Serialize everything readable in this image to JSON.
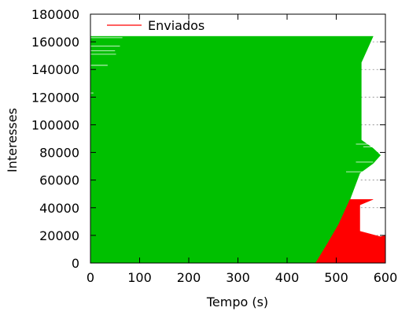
{
  "chart_data": {
    "type": "area",
    "xlabel": "Tempo (s)",
    "ylabel": "Interesses",
    "xlim": [
      0,
      600
    ],
    "ylim": [
      0,
      180000
    ],
    "x_ticks": [
      "0",
      "100",
      "200",
      "300",
      "400",
      "500",
      "600"
    ],
    "y_ticks": [
      "0",
      "20000",
      "40000",
      "60000",
      "80000",
      "100000",
      "120000",
      "140000",
      "160000",
      "180000"
    ],
    "x_tick_values": [
      0,
      100,
      200,
      300,
      400,
      500,
      600
    ],
    "y_tick_values": [
      0,
      20000,
      40000,
      60000,
      80000,
      100000,
      120000,
      140000,
      160000,
      180000
    ],
    "grid": "dotted-right-edge",
    "legend_position": "top-left",
    "series": [
      {
        "name": "Enviados",
        "color": "#ff0000",
        "role": "red-band",
        "boundary": [
          {
            "x": 458,
            "y": 0
          },
          {
            "x": 600,
            "y": 0
          },
          {
            "x": 600,
            "y": 20000
          },
          {
            "x": 590,
            "y": 19000
          },
          {
            "x": 548,
            "y": 23000
          },
          {
            "x": 548,
            "y": 42000
          },
          {
            "x": 575,
            "y": 46000
          },
          {
            "x": 528,
            "y": 46000
          },
          {
            "x": 505,
            "y": 28000
          },
          {
            "x": 482,
            "y": 14000
          }
        ]
      },
      {
        "name": "",
        "color": "#00c000",
        "role": "green-area",
        "boundary": [
          {
            "x": 0,
            "y": 0
          },
          {
            "x": 458,
            "y": 0
          },
          {
            "x": 482,
            "y": 14000
          },
          {
            "x": 505,
            "y": 28000
          },
          {
            "x": 528,
            "y": 46000
          },
          {
            "x": 548,
            "y": 65000
          },
          {
            "x": 575,
            "y": 72000
          },
          {
            "x": 590,
            "y": 78000
          },
          {
            "x": 575,
            "y": 83000
          },
          {
            "x": 551,
            "y": 89000
          },
          {
            "x": 551,
            "y": 145000
          },
          {
            "x": 565,
            "y": 156000
          },
          {
            "x": 575,
            "y": 164000
          },
          {
            "x": 0,
            "y": 164000
          }
        ]
      }
    ]
  }
}
